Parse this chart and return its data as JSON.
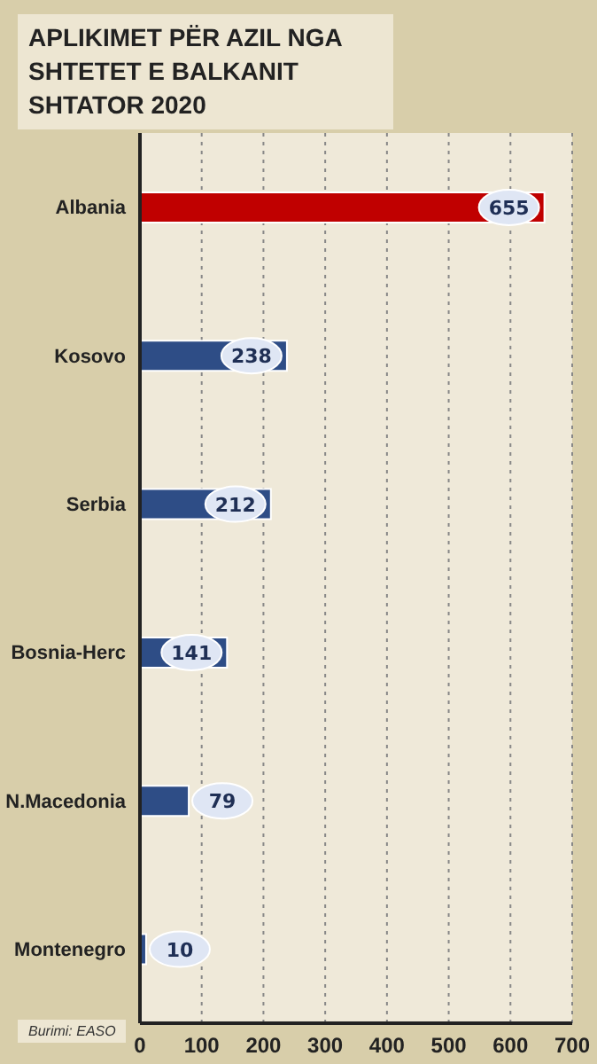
{
  "chart_data": {
    "type": "bar",
    "orientation": "horizontal",
    "title": "APLIKIMET PËR AZIL NGA SHTETET E BALKANIT SHTATOR 2020",
    "categories": [
      "Albania",
      "Kosovo",
      "Serbia",
      "Bosnia-Herc",
      "N.Macedonia",
      "Montenegro"
    ],
    "values": [
      655,
      238,
      212,
      141,
      79,
      10
    ],
    "colors": [
      "#c00000",
      "#2e4d86",
      "#2e4d86",
      "#2e4d86",
      "#2e4d86",
      "#2e4d86"
    ],
    "xlim": [
      0,
      700
    ],
    "xticks": [
      0,
      100,
      200,
      300,
      400,
      500,
      600,
      700
    ],
    "grid": "x",
    "data_labels": true,
    "annotations": [
      "Burimi: EASO"
    ]
  }
}
